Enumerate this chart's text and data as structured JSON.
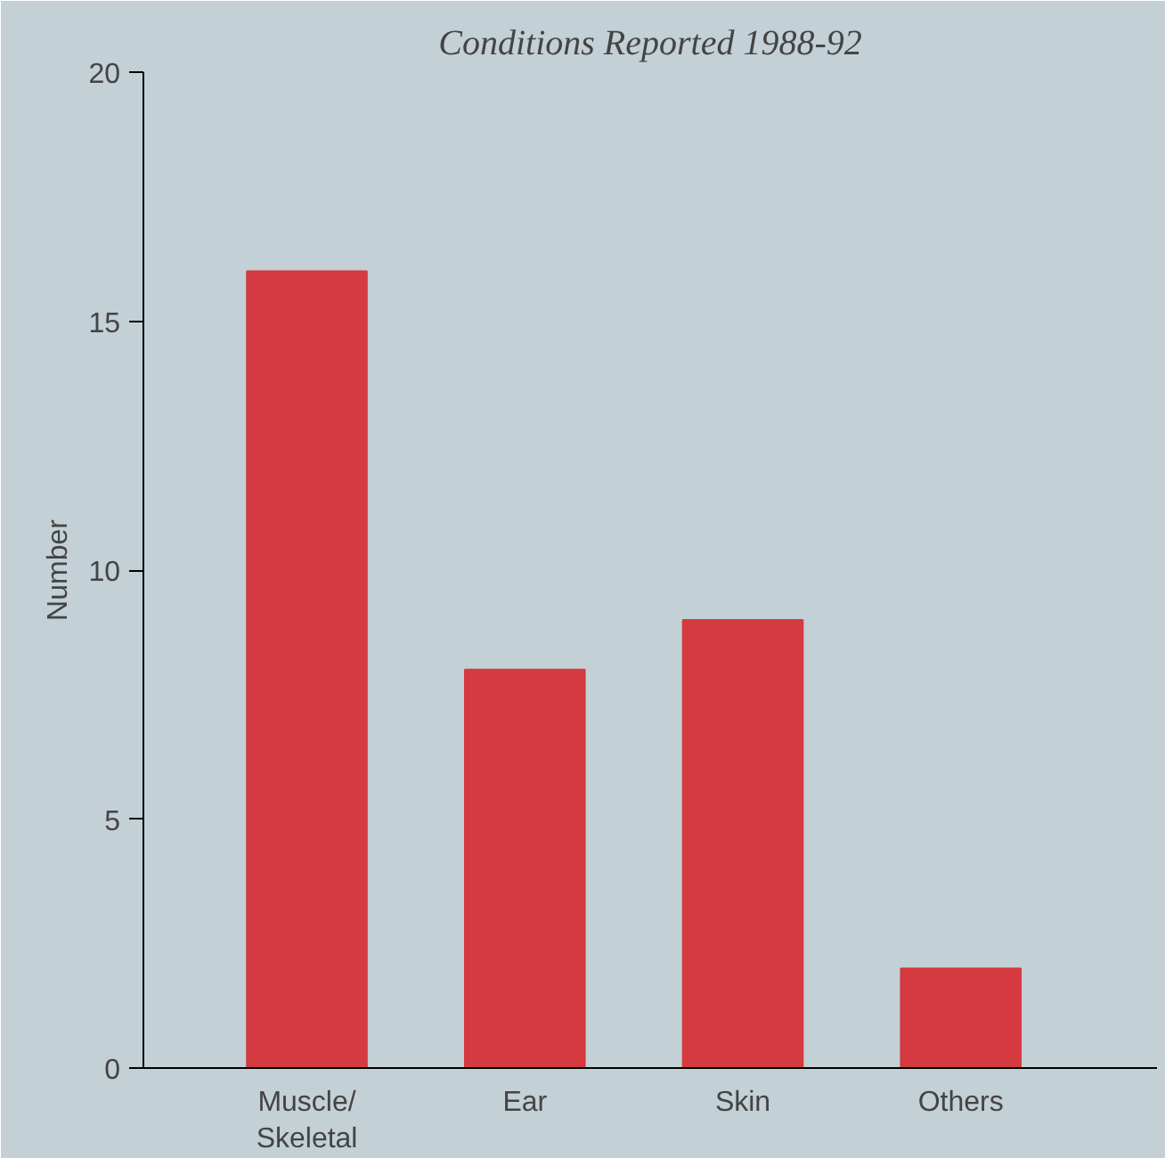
{
  "chart_data": {
    "type": "bar",
    "title": "Conditions Reported 1988-92",
    "ylabel": "Number",
    "categories": [
      "Muscle/\nSkeletal",
      "Ear",
      "Skin",
      "Others"
    ],
    "values": [
      16,
      8,
      9,
      2
    ],
    "color": "#d43a3f",
    "ylim": [
      0,
      20
    ],
    "yticks": [
      0,
      5,
      10,
      15,
      20
    ],
    "grid": false
  }
}
